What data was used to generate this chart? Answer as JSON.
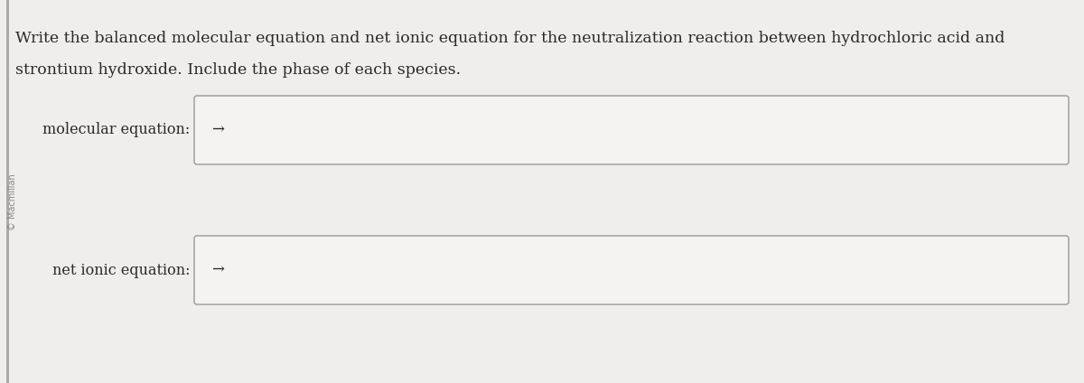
{
  "background_color": "#e8e8e8",
  "page_color": "#f0eeec",
  "title_text_line1": "Write the balanced molecular equation and net ionic equation for the neutralization reaction between hydrochloric acid and",
  "title_text_line2": "strontium hydroxide. Include the phase of each species.",
  "label1": "molecular equation:",
  "label2": "net ionic equation:",
  "box1_arrow": "→",
  "box2_arrow": "→",
  "box_face_color": "#f5f3f1",
  "box_edge_color": "#999999",
  "text_color": "#2a2a2a",
  "title_fontsize": 12.5,
  "label_fontsize": 11.5,
  "arrow_fontsize": 12,
  "watermark_text": "© Macmillan",
  "watermark_color": "#888888",
  "watermark_fontsize": 7,
  "left_bar_color": "#aaaaaa",
  "left_bar_width": 0.003
}
